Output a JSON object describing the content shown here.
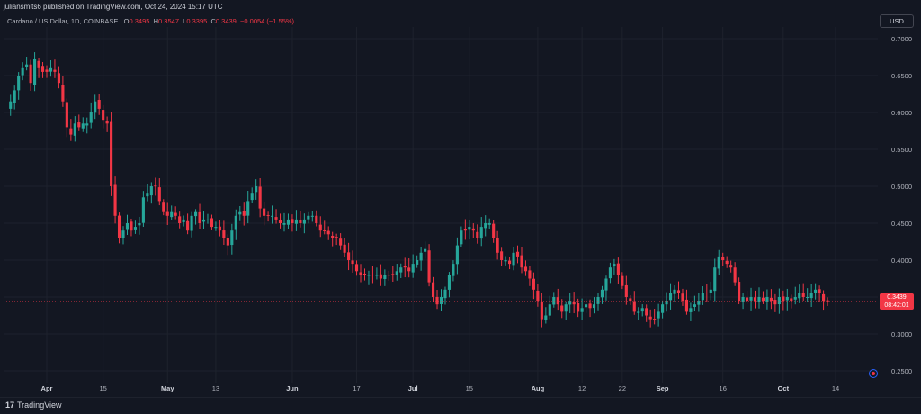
{
  "header": {
    "publisher": "juliansmits6 published on TradingView.com, Oct 24, 2024 15:17 UTC",
    "symbol": "Cardano / US Dollar, 1D, COINBASE",
    "o_label": "O",
    "o_value": "0.3495",
    "h_label": "H",
    "h_value": "0.3547",
    "l_label": "L",
    "l_value": "0.3395",
    "c_label": "C",
    "c_value": "0.3439",
    "change": "−0.0054 (−1.55%)"
  },
  "toolbar": {
    "currency_button": "USD"
  },
  "last_price": {
    "price": "0.3439",
    "countdown": "08:42:01"
  },
  "footer": {
    "brand": "TradingView",
    "logo_mark": "17"
  },
  "colors": {
    "up": "#26a69a",
    "down": "#f23645",
    "background": "#131722",
    "grid": "#1e222d"
  },
  "chart_data": {
    "type": "candlestick",
    "symbol": "Cardano / US Dollar",
    "interval": "1D",
    "exchange": "COINBASE",
    "grid": true,
    "ylim": [
      0.24,
      0.71
    ],
    "y_ticks": [
      "0.7000",
      "0.6500",
      "0.6000",
      "0.5500",
      "0.5000",
      "0.4500",
      "0.4000",
      "0.3500",
      "0.3000",
      "0.2500"
    ],
    "x_ticks": [
      "Apr",
      "15",
      "May",
      "13",
      "Jun",
      "17",
      "Jul",
      "15",
      "Aug",
      "12",
      "22",
      "Sep",
      "16",
      "Oct",
      "14"
    ],
    "x_tick_dates": [
      "2024-04-01",
      "2024-04-15",
      "2024-05-01",
      "2024-05-13",
      "2024-06-01",
      "2024-06-17",
      "2024-07-01",
      "2024-07-15",
      "2024-08-01",
      "2024-08-12",
      "2024-08-22",
      "2024-09-01",
      "2024-09-16",
      "2024-10-01",
      "2024-10-14"
    ],
    "start_date": "2024-03-23",
    "close_series": [
      0.615,
      0.63,
      0.65,
      0.66,
      0.665,
      0.64,
      0.672,
      0.66,
      0.655,
      0.655,
      0.66,
      0.655,
      0.64,
      0.615,
      0.58,
      0.57,
      0.585,
      0.58,
      0.585,
      0.585,
      0.6,
      0.615,
      0.605,
      0.59,
      0.585,
      0.5,
      0.46,
      0.43,
      0.44,
      0.45,
      0.44,
      0.445,
      0.45,
      0.485,
      0.49,
      0.5,
      0.5,
      0.48,
      0.465,
      0.46,
      0.465,
      0.46,
      0.45,
      0.455,
      0.44,
      0.46,
      0.465,
      0.45,
      0.455,
      0.455,
      0.445,
      0.445,
      0.44,
      0.43,
      0.42,
      0.44,
      0.46,
      0.465,
      0.46,
      0.48,
      0.49,
      0.5,
      0.47,
      0.46,
      0.46,
      0.46,
      0.455,
      0.45,
      0.45,
      0.455,
      0.45,
      0.455,
      0.45,
      0.455,
      0.46,
      0.46,
      0.45,
      0.44,
      0.44,
      0.435,
      0.43,
      0.43,
      0.42,
      0.41,
      0.4,
      0.395,
      0.385,
      0.38,
      0.38,
      0.38,
      0.38,
      0.38,
      0.375,
      0.38,
      0.38,
      0.38,
      0.385,
      0.39,
      0.39,
      0.385,
      0.395,
      0.4,
      0.41,
      0.415,
      0.37,
      0.35,
      0.34,
      0.35,
      0.36,
      0.38,
      0.395,
      0.42,
      0.44,
      0.44,
      0.445,
      0.44,
      0.43,
      0.445,
      0.45,
      0.45,
      0.43,
      0.41,
      0.4,
      0.4,
      0.395,
      0.41,
      0.405,
      0.39,
      0.385,
      0.375,
      0.36,
      0.345,
      0.32,
      0.325,
      0.34,
      0.35,
      0.34,
      0.33,
      0.34,
      0.345,
      0.34,
      0.33,
      0.335,
      0.34,
      0.335,
      0.34,
      0.35,
      0.36,
      0.375,
      0.39,
      0.395,
      0.38,
      0.365,
      0.35,
      0.345,
      0.33,
      0.33,
      0.335,
      0.325,
      0.32,
      0.32,
      0.33,
      0.34,
      0.345,
      0.355,
      0.36,
      0.355,
      0.345,
      0.33,
      0.335,
      0.34,
      0.345,
      0.355,
      0.355,
      0.36,
      0.39,
      0.405,
      0.4,
      0.395,
      0.39,
      0.37,
      0.345,
      0.35,
      0.345,
      0.35,
      0.345,
      0.35,
      0.345,
      0.35,
      0.345,
      0.34,
      0.35,
      0.345,
      0.35,
      0.345,
      0.35,
      0.355,
      0.35,
      0.35,
      0.355,
      0.36,
      0.355,
      0.345,
      0.3439
    ],
    "last_close": 0.3439
  }
}
